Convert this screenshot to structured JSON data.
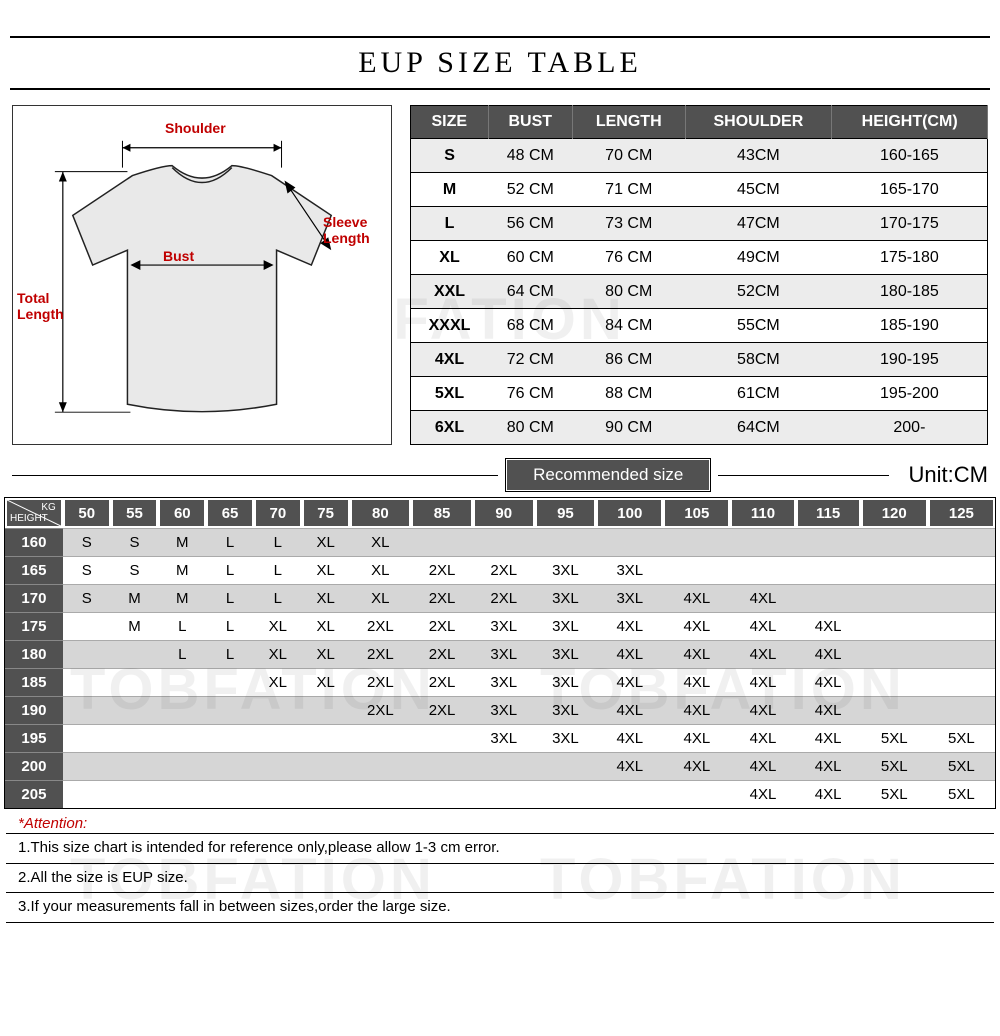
{
  "title": "EUP  SIZE TABLE",
  "watermark_text": "TOBFATION",
  "diagram": {
    "shoulder": "Shoulder",
    "bust": "Bust",
    "sleeve": "Sleeve Length",
    "total_length": "Total Length"
  },
  "size_table": {
    "columns": [
      "SIZE",
      "BUST",
      "LENGTH",
      "SHOULDER",
      "HEIGHT(CM)"
    ],
    "rows": [
      [
        "S",
        "48 CM",
        "70 CM",
        "43CM",
        "160-165"
      ],
      [
        "M",
        "52 CM",
        "71 CM",
        "45CM",
        "165-170"
      ],
      [
        "L",
        "56 CM",
        "73 CM",
        "47CM",
        "170-175"
      ],
      [
        "XL",
        "60 CM",
        "76 CM",
        "49CM",
        "175-180"
      ],
      [
        "XXL",
        "64 CM",
        "80 CM",
        "52CM",
        "180-185"
      ],
      [
        "XXXL",
        "68 CM",
        "84 CM",
        "55CM",
        "185-190"
      ],
      [
        "4XL",
        "72 CM",
        "86 CM",
        "58CM",
        "190-195"
      ],
      [
        "5XL",
        "76 CM",
        "88 CM",
        "61CM",
        "195-200"
      ],
      [
        "6XL",
        "80 CM",
        "90 CM",
        "64CM",
        "200-"
      ]
    ]
  },
  "recommended": {
    "label": "Recommended size",
    "unit": "Unit:CM",
    "corner_kg": "KG",
    "corner_height": "HEIGHT",
    "kg_headers": [
      "50",
      "55",
      "60",
      "65",
      "70",
      "75",
      "80",
      "85",
      "90",
      "95",
      "100",
      "105",
      "110",
      "115",
      "120",
      "125"
    ],
    "height_headers": [
      "160",
      "165",
      "170",
      "175",
      "180",
      "185",
      "190",
      "195",
      "200",
      "205"
    ],
    "grid": [
      [
        "S",
        "S",
        "M",
        "L",
        "L",
        "XL",
        "XL",
        "",
        "",
        "",
        "",
        "",
        "",
        "",
        "",
        ""
      ],
      [
        "S",
        "S",
        "M",
        "L",
        "L",
        "XL",
        "XL",
        "2XL",
        "2XL",
        "3XL",
        "3XL",
        "",
        "",
        "",
        "",
        ""
      ],
      [
        "S",
        "M",
        "M",
        "L",
        "L",
        "XL",
        "XL",
        "2XL",
        "2XL",
        "3XL",
        "3XL",
        "4XL",
        "4XL",
        "",
        "",
        ""
      ],
      [
        "",
        "M",
        "L",
        "L",
        "XL",
        "XL",
        "2XL",
        "2XL",
        "3XL",
        "3XL",
        "4XL",
        "4XL",
        "4XL",
        "4XL",
        "",
        ""
      ],
      [
        "",
        "",
        "L",
        "L",
        "XL",
        "XL",
        "2XL",
        "2XL",
        "3XL",
        "3XL",
        "4XL",
        "4XL",
        "4XL",
        "4XL",
        "",
        ""
      ],
      [
        "",
        "",
        "",
        "",
        "XL",
        "XL",
        "2XL",
        "2XL",
        "3XL",
        "3XL",
        "4XL",
        "4XL",
        "4XL",
        "4XL",
        "",
        ""
      ],
      [
        "",
        "",
        "",
        "",
        "",
        "",
        "2XL",
        "2XL",
        "3XL",
        "3XL",
        "4XL",
        "4XL",
        "4XL",
        "4XL",
        "",
        ""
      ],
      [
        "",
        "",
        "",
        "",
        "",
        "",
        "",
        "",
        "3XL",
        "3XL",
        "4XL",
        "4XL",
        "4XL",
        "4XL",
        "5XL",
        "5XL"
      ],
      [
        "",
        "",
        "",
        "",
        "",
        "",
        "",
        "",
        "",
        "",
        "4XL",
        "4XL",
        "4XL",
        "4XL",
        "5XL",
        "5XL"
      ],
      [
        "",
        "",
        "",
        "",
        "",
        "",
        "",
        "",
        "",
        "",
        "",
        "",
        "4XL",
        "4XL",
        "5XL",
        "5XL"
      ]
    ]
  },
  "attention": "*Attention:",
  "notes": [
    "1.This size chart is intended for reference only,please allow 1-3 cm error.",
    "2.All the size is EUP size.",
    "3.If your measurements fall in between sizes,order the large size."
  ],
  "colors": {
    "header_bg": "#515151",
    "row_alt": "#ececec",
    "grid_alt": "#d6d6d6",
    "accent_red": "#c00000"
  }
}
